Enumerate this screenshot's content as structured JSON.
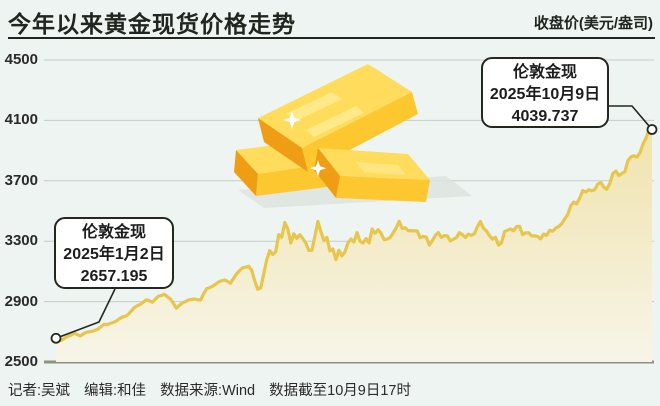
{
  "header": {
    "title": "今年以来黄金现货价格走势",
    "unit_label": "收盘价(美元/盎司)"
  },
  "callouts": {
    "start": {
      "series": "伦敦金现",
      "date": "2025年1月2日",
      "value": "2657.195"
    },
    "end": {
      "series": "伦敦金现",
      "date": "2025年10月9日",
      "value": "4039.737"
    }
  },
  "footer": {
    "reporter": "记者:吴斌",
    "editor": "编辑:和佳",
    "source": "数据来源:Wind",
    "note": "数据截至10月9日17时"
  },
  "icons": {
    "gold_bars": "gold-bars-illustration",
    "sparkle": "four-point-star"
  },
  "colors": {
    "background": "#eef4f1",
    "title_text": "#20261f",
    "line": "#e7c64b",
    "area_top": "#f0e3ac",
    "area_bottom": "#f7f5e8",
    "grid": "#c7ccc6",
    "axis": "#8f927e",
    "callout_border": "#23281f",
    "callout_bg": "#ffffff",
    "gold_main": "#fdc72f",
    "gold_light": "#ffdc5c",
    "gold_stripe": "#ffe989",
    "gold_dark": "#ef9d15",
    "shadow": "#dde4df"
  },
  "chart_data": {
    "type": "area",
    "series_name": "伦敦金现",
    "title": "今年以来黄金现货价格走势",
    "ylabel": "收盘价(美元/盎司)",
    "x_start_label": "2025年1月2日",
    "x_end_label": "2025年10月9日",
    "ylim": [
      2500,
      4500
    ],
    "yticks": [
      2500,
      2900,
      3300,
      3700,
      4100,
      4500
    ],
    "grid": true,
    "legend_position": "none",
    "annotated_points": [
      {
        "label": "伦敦金现 2025年1月2日",
        "value": 2657.195
      },
      {
        "label": "伦敦金现 2025年10月9日",
        "value": 4039.737
      }
    ],
    "values": [
      2657.195,
      2640,
      2645,
      2660,
      2670,
      2678,
      2690,
      2683,
      2672,
      2685,
      2697,
      2700,
      2703,
      2710,
      2718,
      2735,
      2750,
      2748,
      2755,
      2762,
      2771,
      2785,
      2798,
      2802,
      2815,
      2838,
      2860,
      2872,
      2882,
      2896,
      2911,
      2905,
      2896,
      2916,
      2936,
      2940,
      2949,
      2932,
      2918,
      2888,
      2857,
      2875,
      2892,
      2900,
      2911,
      2914,
      2917,
      2912,
      2910,
      2950,
      2984,
      2992,
      3001,
      3015,
      3030,
      3038,
      3044,
      3033,
      3022,
      3055,
      3085,
      3105,
      3124,
      3128,
      3134,
      3108,
      3038,
      2982,
      2990,
      3082,
      3176,
      3238,
      3211,
      3230,
      3343,
      3327,
      3424,
      3381,
      3288,
      3349,
      3319,
      3343,
      3317,
      3288,
      3239,
      3240,
      3333,
      3431,
      3364,
      3304,
      3325,
      3235,
      3249,
      3178,
      3240,
      3203,
      3230,
      3290,
      3314,
      3295,
      3357,
      3300,
      3288,
      3317,
      3289,
      3381,
      3353,
      3376,
      3352,
      3310,
      3314,
      3323,
      3355,
      3387,
      3432,
      3385,
      3389,
      3369,
      3370,
      3368,
      3368,
      3323,
      3332,
      3328,
      3274,
      3303,
      3338,
      3357,
      3326,
      3337,
      3336,
      3301,
      3313,
      3324,
      3356,
      3343,
      3325,
      3347,
      3339,
      3350,
      3397,
      3431,
      3387,
      3368,
      3337,
      3314,
      3326,
      3274,
      3289,
      3363,
      3373,
      3381,
      3369,
      3397,
      3398,
      3344,
      3355,
      3356,
      3335,
      3336,
      3332,
      3315,
      3348,
      3339,
      3372,
      3366,
      3387,
      3397,
      3416,
      3448,
      3476,
      3533,
      3559,
      3547,
      3587,
      3636,
      3626,
      3641,
      3634,
      3643,
      3679,
      3689,
      3659,
      3644,
      3685,
      3749,
      3764,
      3736,
      3749,
      3760,
      3833,
      3858,
      3866,
      3857,
      3886,
      3944,
      3983,
      4040,
      4039.737
    ]
  }
}
